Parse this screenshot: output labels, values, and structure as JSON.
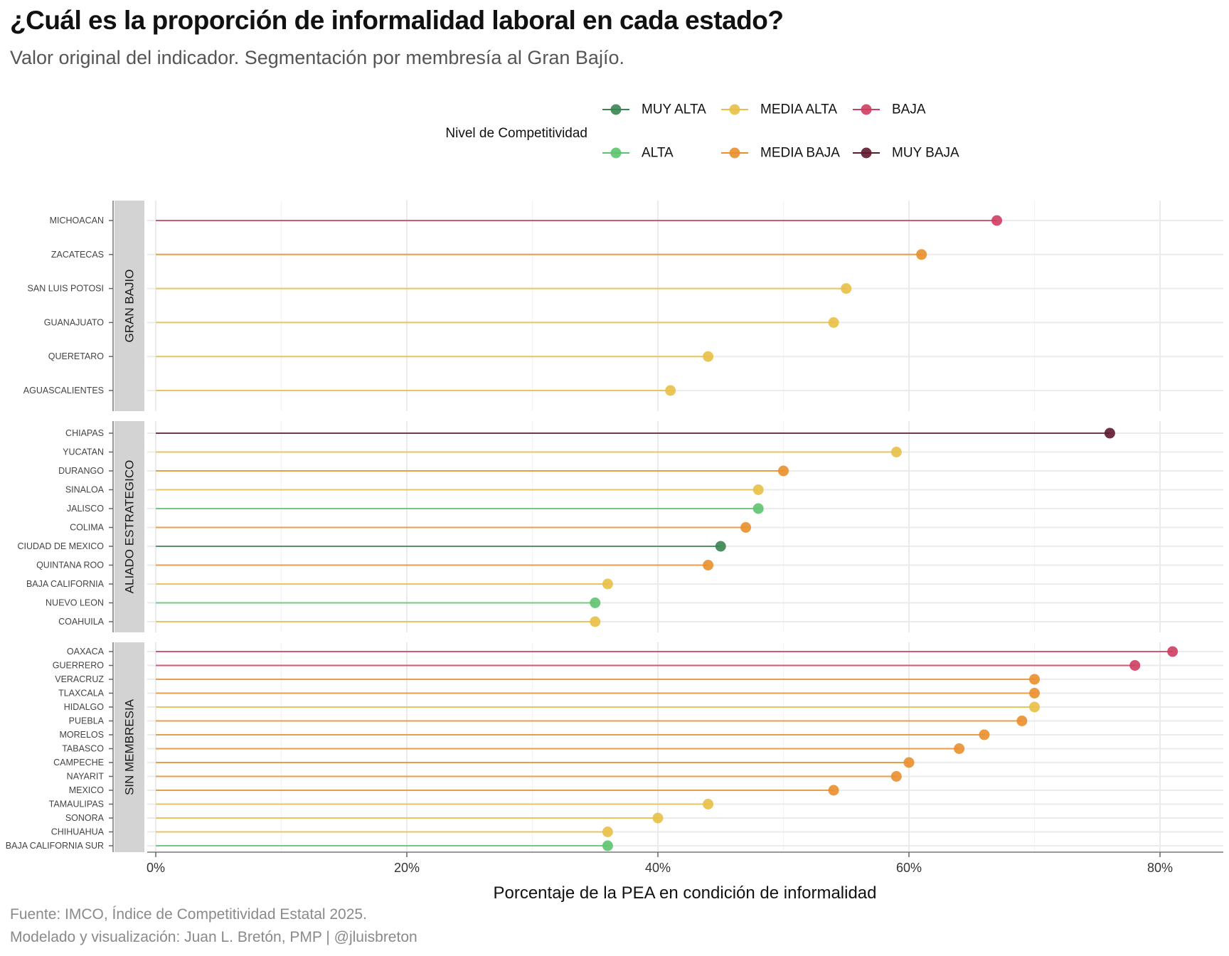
{
  "title": "¿Cuál es la proporción de informalidad laboral en cada estado?",
  "subtitle": "Valor original del indicador. Segmentación por membresía al Gran Bajío.",
  "caption_source": "Fuente: IMCO, Índice de Competitividad Estatal 2025.",
  "caption_author": "Modelado y visualización: Juan L. Bretón, PMP | @jluisbreton",
  "chart_data": {
    "type": "lollipop",
    "xlabel": "Porcentaje de la PEA en condición de informalidad",
    "xlim": [
      0,
      85
    ],
    "x_ticks": [
      {
        "value": 0,
        "label": "0%"
      },
      {
        "value": 20,
        "label": "20%"
      },
      {
        "value": 40,
        "label": "40%"
      },
      {
        "value": 60,
        "label": "60%"
      },
      {
        "value": 80,
        "label": "80%"
      }
    ],
    "grid": true,
    "legend": {
      "title": "Nivel de Competitividad",
      "placement": "top",
      "levels": [
        {
          "name": "MUY ALTA",
          "color": "#3a8451"
        },
        {
          "name": "ALTA",
          "color": "#5dc46e"
        },
        {
          "name": "MEDIA ALTA",
          "color": "#e8c046"
        },
        {
          "name": "MEDIA BAJA",
          "color": "#ea8f2c"
        },
        {
          "name": "BAJA",
          "color": "#cf3d62"
        },
        {
          "name": "MUY BAJA",
          "color": "#5e1a2d"
        }
      ]
    },
    "facets": [
      {
        "name": "GRAN BAJIO",
        "rows": [
          {
            "state": "MICHOACAN",
            "value": 67,
            "level": "BAJA"
          },
          {
            "state": "ZACATECAS",
            "value": 61,
            "level": "MEDIA BAJA"
          },
          {
            "state": "SAN LUIS POTOSI",
            "value": 55,
            "level": "MEDIA ALTA"
          },
          {
            "state": "GUANAJUATO",
            "value": 54,
            "level": "MEDIA ALTA"
          },
          {
            "state": "QUERETARO",
            "value": 44,
            "level": "MEDIA ALTA"
          },
          {
            "state": "AGUASCALIENTES",
            "value": 41,
            "level": "MEDIA ALTA"
          }
        ]
      },
      {
        "name": "ALIADO ESTRATEGICO",
        "rows": [
          {
            "state": "CHIAPAS",
            "value": 76,
            "level": "MUY BAJA"
          },
          {
            "state": "YUCATAN",
            "value": 59,
            "level": "MEDIA ALTA"
          },
          {
            "state": "DURANGO",
            "value": 50,
            "level": "MEDIA BAJA"
          },
          {
            "state": "SINALOA",
            "value": 48,
            "level": "MEDIA ALTA"
          },
          {
            "state": "JALISCO",
            "value": 48,
            "level": "ALTA"
          },
          {
            "state": "COLIMA",
            "value": 47,
            "level": "MEDIA BAJA"
          },
          {
            "state": "CIUDAD DE MEXICO",
            "value": 45,
            "level": "MUY ALTA"
          },
          {
            "state": "QUINTANA ROO",
            "value": 44,
            "level": "MEDIA BAJA"
          },
          {
            "state": "BAJA CALIFORNIA",
            "value": 36,
            "level": "MEDIA ALTA"
          },
          {
            "state": "NUEVO LEON",
            "value": 35,
            "level": "ALTA"
          },
          {
            "state": "COAHUILA",
            "value": 35,
            "level": "MEDIA ALTA"
          }
        ]
      },
      {
        "name": "SIN MEMBRESIA",
        "rows": [
          {
            "state": "OAXACA",
            "value": 81,
            "level": "BAJA"
          },
          {
            "state": "GUERRERO",
            "value": 78,
            "level": "BAJA"
          },
          {
            "state": "VERACRUZ",
            "value": 70,
            "level": "MEDIA BAJA"
          },
          {
            "state": "TLAXCALA",
            "value": 70,
            "level": "MEDIA BAJA"
          },
          {
            "state": "HIDALGO",
            "value": 70,
            "level": "MEDIA ALTA"
          },
          {
            "state": "PUEBLA",
            "value": 69,
            "level": "MEDIA BAJA"
          },
          {
            "state": "MORELOS",
            "value": 66,
            "level": "MEDIA BAJA"
          },
          {
            "state": "TABASCO",
            "value": 64,
            "level": "MEDIA BAJA"
          },
          {
            "state": "CAMPECHE",
            "value": 60,
            "level": "MEDIA BAJA"
          },
          {
            "state": "NAYARIT",
            "value": 59,
            "level": "MEDIA BAJA"
          },
          {
            "state": "MEXICO",
            "value": 54,
            "level": "MEDIA BAJA"
          },
          {
            "state": "TAMAULIPAS",
            "value": 44,
            "level": "MEDIA ALTA"
          },
          {
            "state": "SONORA",
            "value": 40,
            "level": "MEDIA ALTA"
          },
          {
            "state": "CHIHUAHUA",
            "value": 36,
            "level": "MEDIA ALTA"
          },
          {
            "state": "BAJA CALIFORNIA SUR",
            "value": 36,
            "level": "ALTA"
          }
        ]
      }
    ]
  }
}
